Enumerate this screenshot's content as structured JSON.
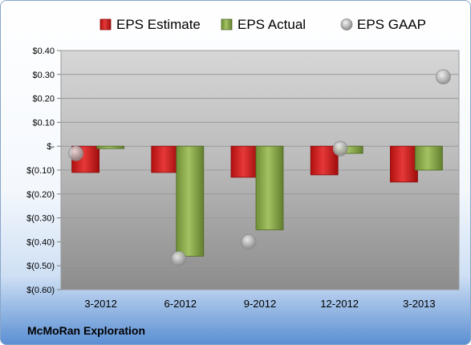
{
  "company": "McMoRan Exploration",
  "chart_data": {
    "type": "bar",
    "categories": [
      "3-2012",
      "6-2012",
      "9-2012",
      "12-2012",
      "3-2013"
    ],
    "series": [
      {
        "name": "EPS Estimate",
        "kind": "bar",
        "color": "#d22020",
        "values": [
          -0.11,
          -0.11,
          -0.13,
          -0.12,
          -0.15
        ]
      },
      {
        "name": "EPS Actual",
        "kind": "bar",
        "color": "#8fae4e",
        "values": [
          -0.01,
          -0.46,
          -0.35,
          -0.03,
          -0.1
        ]
      },
      {
        "name": "EPS GAAP",
        "kind": "scatter",
        "color": "#b8b8b8",
        "values": [
          -0.03,
          -0.47,
          -0.4,
          -0.01,
          0.29
        ]
      }
    ],
    "ylim": [
      -0.6,
      0.4
    ],
    "yticks": [
      0.4,
      0.3,
      0.2,
      0.1,
      0,
      -0.1,
      -0.2,
      -0.3,
      -0.4,
      -0.5,
      -0.6
    ],
    "ytick_labels": [
      "$0.40",
      "$0.30",
      "$0.20",
      "$0.10",
      "$-",
      "$(0.10)",
      "$(0.20)",
      "$(0.30)",
      "$(0.40)",
      "$(0.50)",
      "$(0.60)"
    ],
    "grid": true,
    "legend": "top"
  }
}
